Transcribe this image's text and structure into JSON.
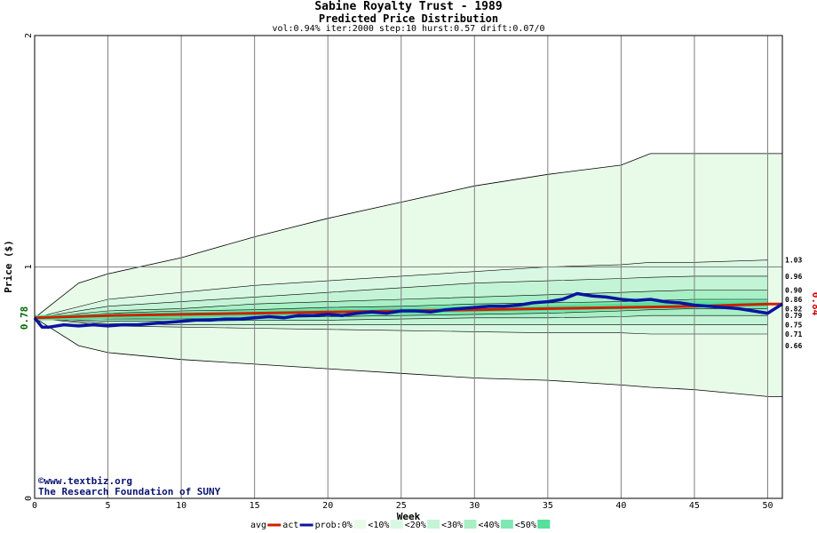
{
  "header": {
    "title": "Sabine Royalty Trust - 1989",
    "subtitle": "Predicted Price Distribution",
    "params": "vol:0.94% iter:2000 step:10 hurst:0.57 drift:0.07/0"
  },
  "copyright": {
    "site": "©www.textbiz.org",
    "org": "The Research Foundation of SUNY"
  },
  "colors": {
    "plot_bg": "#ffffff",
    "grid": "#808080",
    "band_outer": "#e8fbe8",
    "band_10": "#d9f8e3",
    "band_20": "#c4f4d6",
    "band_30": "#a8efc6",
    "band_40": "#7fe8b2",
    "band_50": "#55e09c",
    "avg_line": "#cc2200",
    "act_line": "#0a14a0",
    "start_label": "#006600",
    "end_label": "#cc0000"
  },
  "chart_data": {
    "type": "area",
    "xlabel": "Week",
    "ylabel": "Price ($)",
    "xlim": [
      0,
      51
    ],
    "ylim": [
      0,
      2
    ],
    "x_ticks": [
      0,
      5,
      10,
      15,
      20,
      25,
      30,
      35,
      40,
      45,
      50
    ],
    "y_ticks": [
      0,
      1,
      2
    ],
    "start_value_label": "0.78",
    "end_value_label": "0.84",
    "right_labels": [
      "1.03",
      "0.96",
      "0.90",
      "0.86",
      "0.82",
      "0.79",
      "0.75",
      "0.71",
      "0.66"
    ],
    "band_curves": {
      "weeks": [
        0,
        5,
        10,
        15,
        20,
        25,
        30,
        35,
        40,
        42,
        45,
        50
      ],
      "p0_upper": [
        0.78,
        1.0,
        1.04,
        1.13,
        1.21,
        1.28,
        1.35,
        1.4,
        1.44,
        1.49,
        1.49,
        1.49
      ],
      "p10_upper": [
        0.78,
        0.86,
        0.89,
        0.92,
        0.94,
        0.96,
        0.98,
        1.0,
        1.01,
        1.02,
        1.02,
        1.03
      ],
      "p20_upper": [
        0.78,
        0.83,
        0.85,
        0.87,
        0.89,
        0.91,
        0.93,
        0.94,
        0.95,
        0.955,
        0.96,
        0.96
      ],
      "p30_upper": [
        0.78,
        0.81,
        0.82,
        0.84,
        0.85,
        0.86,
        0.87,
        0.88,
        0.89,
        0.895,
        0.9,
        0.9
      ],
      "p40_upper": [
        0.78,
        0.8,
        0.81,
        0.815,
        0.825,
        0.83,
        0.84,
        0.845,
        0.85,
        0.855,
        0.86,
        0.86
      ],
      "p40_lower": [
        0.78,
        0.775,
        0.775,
        0.78,
        0.785,
        0.79,
        0.795,
        0.8,
        0.81,
        0.815,
        0.82,
        0.82
      ],
      "p30_lower": [
        0.78,
        0.765,
        0.765,
        0.77,
        0.77,
        0.775,
        0.78,
        0.78,
        0.785,
        0.79,
        0.79,
        0.79
      ],
      "p20_lower": [
        0.78,
        0.755,
        0.75,
        0.75,
        0.75,
        0.75,
        0.75,
        0.75,
        0.75,
        0.75,
        0.75,
        0.75
      ],
      "p10_lower": [
        0.78,
        0.745,
        0.74,
        0.735,
        0.73,
        0.725,
        0.72,
        0.715,
        0.715,
        0.71,
        0.71,
        0.71
      ],
      "p0_lower": [
        0.78,
        0.71,
        0.69,
        0.67,
        0.66,
        0.655,
        0.65,
        0.645,
        0.645,
        0.64,
        0.64,
        0.66
      ]
    },
    "outer_bounds": {
      "weeks": [
        0,
        3,
        5,
        10,
        15,
        20,
        25,
        30,
        35,
        40,
        42,
        45,
        50,
        51
      ],
      "upper": [
        0.78,
        0.93,
        0.97,
        1.04,
        1.13,
        1.21,
        1.28,
        1.35,
        1.4,
        1.44,
        1.49,
        1.49,
        1.49,
        1.49
      ],
      "lower": [
        0.78,
        0.66,
        0.63,
        0.6,
        0.58,
        0.56,
        0.54,
        0.52,
        0.51,
        0.49,
        0.48,
        0.47,
        0.44,
        0.44
      ]
    },
    "series": [
      {
        "name": "avg",
        "x": [
          0,
          5,
          10,
          15,
          20,
          25,
          30,
          35,
          40,
          45,
          50,
          51
        ],
        "values": [
          0.78,
          0.79,
          0.795,
          0.8,
          0.805,
          0.81,
          0.815,
          0.82,
          0.825,
          0.83,
          0.84,
          0.84
        ]
      },
      {
        "name": "act",
        "x": [
          0,
          0.5,
          1,
          2,
          3,
          4,
          5,
          6,
          7,
          8,
          9,
          10,
          11,
          12,
          13,
          14,
          15,
          16,
          17,
          18,
          19,
          20,
          21,
          22,
          23,
          24,
          25,
          26,
          27,
          28,
          29,
          30,
          31,
          32,
          33,
          34,
          35,
          36,
          37,
          38,
          39,
          40,
          41,
          42,
          43,
          44,
          45,
          46,
          47,
          48,
          49,
          50,
          51
        ],
        "values": [
          0.78,
          0.74,
          0.74,
          0.75,
          0.745,
          0.75,
          0.745,
          0.75,
          0.75,
          0.755,
          0.76,
          0.765,
          0.77,
          0.77,
          0.775,
          0.775,
          0.78,
          0.785,
          0.78,
          0.79,
          0.79,
          0.795,
          0.79,
          0.8,
          0.805,
          0.8,
          0.81,
          0.81,
          0.805,
          0.815,
          0.82,
          0.825,
          0.83,
          0.83,
          0.835,
          0.845,
          0.85,
          0.86,
          0.885,
          0.875,
          0.87,
          0.86,
          0.855,
          0.86,
          0.85,
          0.845,
          0.835,
          0.83,
          0.825,
          0.82,
          0.81,
          0.8,
          0.84
        ]
      }
    ]
  },
  "legend": {
    "avg_label": "avg",
    "act_label": "act",
    "prob_label": "prob:0%",
    "band_labels": [
      "<10%",
      "<20%",
      "<30%",
      "<40%",
      "<50%"
    ]
  }
}
